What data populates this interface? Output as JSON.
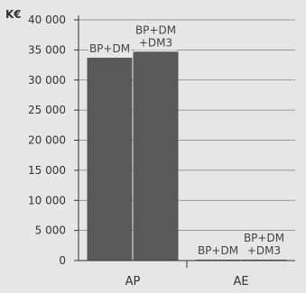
{
  "chart_data": {
    "type": "bar",
    "unit_label": "K€",
    "categories": [
      "AP",
      "AE"
    ],
    "series": [
      {
        "name": "BP+DM",
        "values": [
          33700,
          120
        ]
      },
      {
        "name": "BP+DM+DM3",
        "values": [
          34700,
          130
        ]
      }
    ],
    "data_labels": [
      [
        "BP+DM",
        "BP+DM\n+DM3"
      ],
      [
        "BP+DM",
        "BP+DM\n+DM3"
      ]
    ],
    "ylim": [
      0,
      40000
    ],
    "y_ticks": [
      "0",
      "5 000",
      "10 000",
      "15 000",
      "20 000",
      "25 000",
      "30 000",
      "35 000",
      "40 000"
    ],
    "grid": true,
    "legend": "none",
    "colors": {
      "bar": "#595959",
      "background": "#e6e6e6",
      "grid": "#7f7f7f",
      "text": "#333333"
    }
  }
}
